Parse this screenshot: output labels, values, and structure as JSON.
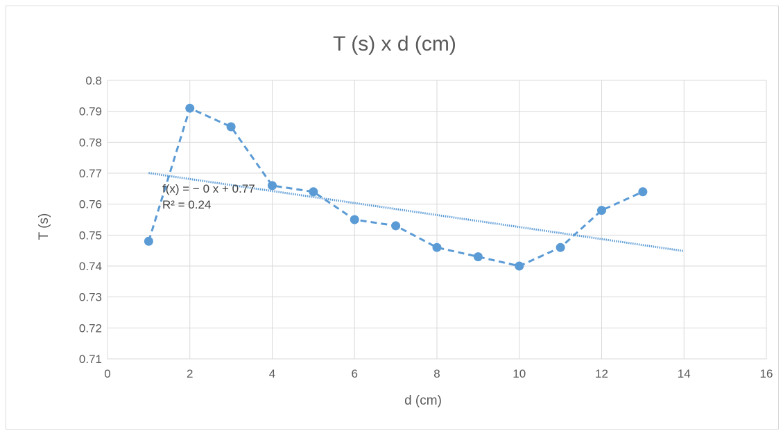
{
  "colors": {
    "series": "#5b9bd5",
    "grid": "#d9d9d9",
    "text": "#595959",
    "trendline": "#5b9bd5"
  },
  "chart_data": {
    "type": "scatter",
    "title": "T (s) x d (cm)",
    "xlabel": "d (cm)",
    "ylabel": "T (s)",
    "xlim": [
      0,
      16
    ],
    "ylim": [
      0.71,
      0.8
    ],
    "x_ticks": [
      "0",
      "2",
      "4",
      "6",
      "8",
      "10",
      "12",
      "14",
      "16"
    ],
    "y_ticks": [
      "0.71",
      "0.72",
      "0.73",
      "0.74",
      "0.75",
      "0.76",
      "0.77",
      "0.78",
      "0.79",
      "0.8"
    ],
    "grid": true,
    "connector_line": "dashed",
    "series": [
      {
        "x": [
          1,
          2,
          3,
          4,
          5,
          6,
          7,
          8,
          9,
          10,
          11,
          12,
          13
        ],
        "y": [
          0.748,
          0.791,
          0.785,
          0.766,
          0.764,
          0.755,
          0.753,
          0.746,
          0.743,
          0.74,
          0.746,
          0.758,
          0.764
        ]
      }
    ],
    "trendline": {
      "type": "linear",
      "style": "dotted",
      "x_range": [
        1,
        14
      ],
      "slope": -0.00194,
      "intercept": 0.772,
      "equation_label": "f(x) = − 0 x + 0.77",
      "r2_label": "R² = 0.24"
    }
  }
}
